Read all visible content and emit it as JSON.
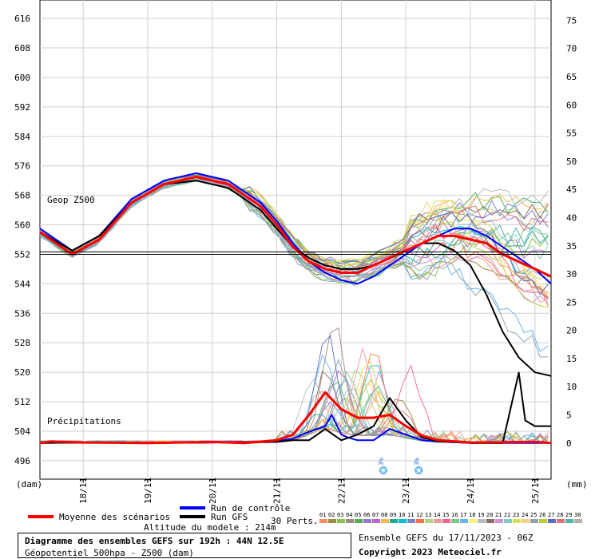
{
  "chart_data": {
    "type": "line",
    "title": "Diagramme des ensembles GEFS sur 192h : 44N 12.5E",
    "subtitle": "Géopotentiel 500hpa - Z500 (dam)",
    "left_axis": {
      "unit": "(dam)",
      "ylim": [
        491,
        621
      ],
      "ticks": [
        616,
        608,
        600,
        592,
        584,
        576,
        568,
        560,
        552,
        544,
        536,
        528,
        520,
        512,
        504,
        496
      ]
    },
    "right_axis": {
      "unit": "(mm)",
      "ylim": [
        -6.4,
        78.6
      ],
      "ticks": [
        75,
        70,
        65,
        60,
        55,
        50,
        45,
        40,
        35,
        30,
        25,
        20,
        15,
        10,
        5,
        0
      ]
    },
    "x_axis": {
      "xlim": [
        17.33,
        25.25
      ],
      "ticks": [
        {
          "x": 18,
          "label": "18/11"
        },
        {
          "x": 19,
          "label": "19/11"
        },
        {
          "x": 20,
          "label": "20/11"
        },
        {
          "x": 21,
          "label": "21/11"
        },
        {
          "x": 22,
          "label": "22/11"
        },
        {
          "x": 23,
          "label": "23/11"
        },
        {
          "x": 24,
          "label": "24/11"
        },
        {
          "x": 25,
          "label": "25/11"
        }
      ]
    },
    "reference_line": 552,
    "labels": {
      "geop": "Geop Z500",
      "precip": "Précipitations"
    },
    "snow_markers": [
      {
        "x": 22.65,
        "label": "3%"
      },
      {
        "x": 23.2,
        "label": "3%"
      }
    ],
    "series": [
      {
        "name": "Moyenne des scénarios",
        "color": "#ff0000",
        "kind": "z500",
        "x": [
          17.33,
          17.83,
          18.25,
          18.75,
          19.25,
          19.75,
          20.25,
          20.75,
          21.0,
          21.25,
          21.5,
          21.75,
          22.0,
          22.25,
          22.5,
          22.75,
          23.0,
          23.25,
          23.5,
          23.75,
          24.0,
          24.25,
          24.5,
          24.75,
          25.0,
          25.25
        ],
        "values": [
          558,
          552,
          556,
          566,
          571,
          573,
          571,
          565,
          560,
          554,
          550,
          548,
          547,
          547,
          549,
          551,
          553,
          555,
          557,
          557,
          556,
          555,
          552,
          550,
          548,
          546
        ]
      },
      {
        "name": "Run de contrôle",
        "color": "#0000ff",
        "kind": "z500",
        "x": [
          17.33,
          17.83,
          18.25,
          18.75,
          19.25,
          19.75,
          20.25,
          20.75,
          21.0,
          21.25,
          21.5,
          21.75,
          22.0,
          22.25,
          22.5,
          22.75,
          23.0,
          23.25,
          23.5,
          23.75,
          24.0,
          24.25,
          24.5,
          24.75,
          25.0,
          25.25
        ],
        "values": [
          559,
          553,
          557,
          567,
          572,
          574,
          572,
          566,
          561,
          555,
          550,
          547,
          545,
          544,
          546,
          549,
          552,
          555,
          557,
          559,
          559,
          557,
          554,
          551,
          548,
          544
        ]
      },
      {
        "name": "Run GFS",
        "color": "#000000",
        "kind": "z500",
        "x": [
          17.33,
          17.83,
          18.25,
          18.75,
          19.25,
          19.75,
          20.25,
          20.75,
          21.0,
          21.25,
          21.5,
          21.75,
          22.0,
          22.25,
          22.5,
          22.75,
          23.0,
          23.25,
          23.5,
          23.75,
          24.0,
          24.25,
          24.5,
          24.75,
          25.0,
          25.25
        ],
        "values": [
          558,
          553,
          557,
          566,
          571,
          572,
          570,
          564,
          559,
          554,
          551,
          549,
          548,
          548,
          549,
          551,
          553,
          555,
          555,
          553,
          549,
          541,
          531,
          524,
          520,
          519
        ]
      },
      {
        "name": "Moyenne des scénarios",
        "color": "#ff0000",
        "kind": "precip",
        "x": [
          17.33,
          17.5,
          18.0,
          19.0,
          20.0,
          20.5,
          21.0,
          21.25,
          21.5,
          21.75,
          22.0,
          22.25,
          22.5,
          22.75,
          23.0,
          23.25,
          23.5,
          24.0,
          25.0,
          25.25
        ],
        "values": [
          0,
          0.3,
          0.1,
          0,
          0.2,
          0,
          0.5,
          1.5,
          5,
          9,
          6,
          4.5,
          4.5,
          5,
          3,
          1.3,
          0.5,
          0.1,
          0.2,
          0
        ]
      },
      {
        "name": "Run de contrôle",
        "color": "#0000ff",
        "kind": "precip",
        "x": [
          17.33,
          18.0,
          19.0,
          20.0,
          21.0,
          21.25,
          21.5,
          21.75,
          21.85,
          22.0,
          22.1,
          22.25,
          22.5,
          22.75,
          23.0,
          23.25,
          23.5,
          24.0,
          25.0,
          25.25
        ],
        "values": [
          0,
          0.1,
          0,
          0.1,
          0.3,
          0.8,
          2,
          3,
          5,
          1.5,
          1,
          0.5,
          0.5,
          2.5,
          1.5,
          0.5,
          0.3,
          0,
          0,
          0
        ]
      },
      {
        "name": "Run GFS",
        "color": "#000000",
        "kind": "precip",
        "x": [
          17.33,
          18.0,
          19.0,
          20.0,
          21.0,
          21.25,
          21.5,
          21.75,
          22.0,
          22.25,
          22.5,
          22.75,
          23.0,
          23.25,
          23.5,
          23.75,
          24.0,
          24.25,
          24.5,
          24.75,
          24.85,
          25.0,
          25.25
        ],
        "values": [
          0,
          0.1,
          0,
          0.1,
          0.2,
          0.5,
          0.5,
          2.5,
          0.5,
          1.5,
          3,
          8,
          4,
          1,
          0.3,
          0.2,
          0,
          0,
          0,
          12.5,
          4,
          3,
          3
        ]
      }
    ],
    "members": {
      "count": 30,
      "label": "30 Perts.",
      "colors": [
        "#ff8a65",
        "#9c8c3c",
        "#8bc34a",
        "#a1887f",
        "#4caf50",
        "#9575cd",
        "#ba68c8",
        "#ffb74d",
        "#26a69a",
        "#00bcd4",
        "#7986cb",
        "#ff7043",
        "#aed581",
        "#ef9a9a",
        "#f06292",
        "#81c784",
        "#64b5f6",
        "#fff176",
        "#b0bec5",
        "#8d6e63",
        "#ce93d8",
        "#80cbc4",
        "#d4e157",
        "#ffcc80",
        "#90a4ae",
        "#c0ca33",
        "#5c6bc0",
        "#e57373",
        "#4db6ac",
        "#bcaaa4"
      ]
    },
    "footer": {
      "altitude": "Altitude du modele : 214m",
      "ensemble": "Ensemble GEFS du 17/11/2023 - 06Z",
      "copyright": "Copyright 2023 Meteociel.fr"
    }
  }
}
